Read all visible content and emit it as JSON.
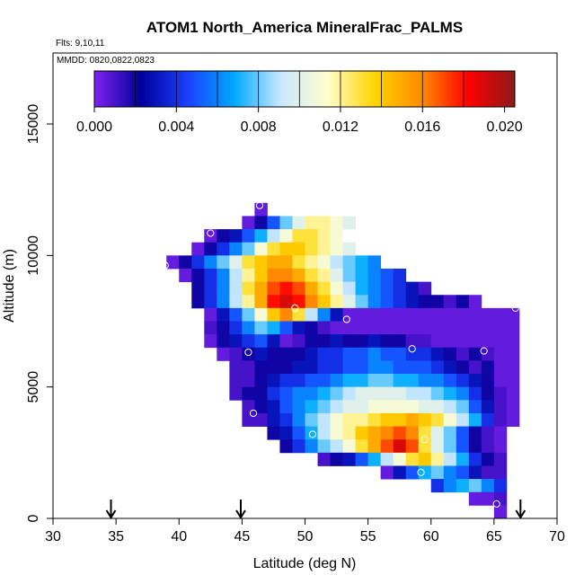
{
  "chart_data": {
    "type": "heatmap",
    "title": "ATOM1 North_America MineralFrac_PALMS",
    "info_lines": [
      "Flts: 9,10,11",
      "MMDD: 0820,0822,0823"
    ],
    "xlabel": "Latitude (deg N)",
    "ylabel": "Altitude (m)",
    "xlim": [
      30,
      70
    ],
    "ylim": [
      0,
      17700
    ],
    "x_ticks": [
      30,
      35,
      40,
      45,
      50,
      55,
      60,
      65,
      70
    ],
    "y_ticks": [
      0,
      5000,
      10000,
      15000
    ],
    "colorbar": {
      "range": [
        0,
        0.0205
      ],
      "tick_values": [
        0,
        0.004,
        0.008,
        0.012,
        0.016,
        0.02
      ],
      "tick_labels": [
        "0.000",
        "0.004",
        "0.008",
        "0.012",
        "0.016",
        "0.020"
      ],
      "stops": [
        "#7f22f0",
        "#00009a",
        "#1a40ff",
        "#00aaff",
        "#cce8ff",
        "#ffffcc",
        "#ffd400",
        "#ff8c00",
        "#ff0000",
        "#8b1a1a"
      ]
    },
    "grid_cell": {
      "lat_step": 1,
      "alt_step": 500
    },
    "rows": [
      {
        "alt": 11750,
        "lat0": 46,
        "values": [
          0.0005
        ]
      },
      {
        "alt": 11250,
        "lat0": 45,
        "values": [
          0.0005,
          0.002,
          0.005,
          0.008,
          0.01,
          0.012,
          0.012,
          0.011,
          0.01
        ]
      },
      {
        "alt": 10750,
        "lat0": 42,
        "values": [
          0.0005,
          0.002,
          0.003,
          0.005,
          0.007,
          0.009,
          0.011,
          0.013,
          0.013,
          0.012,
          0.011
        ]
      },
      {
        "alt": 10250,
        "lat0": 41,
        "values": [
          0.0005,
          0.002,
          0.004,
          0.006,
          0.008,
          0.011,
          0.013,
          0.014,
          0.014,
          0.013,
          0.012,
          0.011,
          0.01
        ]
      },
      {
        "alt": 9750,
        "lat0": 39,
        "values": [
          0.0005,
          0.002,
          0.004,
          0.006,
          0.008,
          0.01,
          0.013,
          0.014,
          0.015,
          0.015,
          0.013,
          0.012,
          0.011,
          0.009,
          0.008,
          0.007,
          0.006
        ]
      },
      {
        "alt": 9250,
        "lat0": 40,
        "values": [
          0.0005,
          0.002,
          0.004,
          0.006,
          0.009,
          0.012,
          0.014,
          0.016,
          0.016,
          0.015,
          0.013,
          0.012,
          0.01,
          0.008,
          0.007,
          0.006,
          0.005,
          0.004
        ]
      },
      {
        "alt": 8750,
        "lat0": 41,
        "values": [
          0.002,
          0.004,
          0.006,
          0.009,
          0.013,
          0.015,
          0.017,
          0.018,
          0.017,
          0.015,
          0.013,
          0.011,
          0.009,
          0.007,
          0.006,
          0.005,
          0.004,
          0.003,
          0.001
        ]
      },
      {
        "alt": 8250,
        "lat0": 41,
        "values": [
          0.002,
          0.004,
          0.006,
          0.009,
          0.012,
          0.015,
          0.018,
          0.019,
          0.018,
          0.016,
          0.014,
          0.012,
          0.01,
          0.008,
          0.006,
          0.005,
          0.004,
          0.003,
          0.002,
          0.002,
          0.001,
          0.002,
          0.0005
        ]
      },
      {
        "alt": 7750,
        "lat0": 42,
        "values": [
          0.0005,
          0.003,
          0.005,
          0.008,
          0.011,
          0.014,
          0.016,
          0.013,
          0.009,
          0.006,
          0.003,
          0.0005,
          0.0005,
          0.0005,
          0.0005,
          0.0005,
          0.0005,
          0.0005,
          0.0005,
          0.0005,
          0.0005,
          0.0005,
          0.0005,
          0.0005,
          0.0005
        ]
      },
      {
        "alt": 7250,
        "lat0": 42,
        "values": [
          0.001,
          0.002,
          0.004,
          0.006,
          0.008,
          0.007,
          0.005,
          0.003,
          0.002,
          0.001,
          0.0005,
          0.0005,
          0.0005,
          0.0005,
          0.0005,
          0.0005,
          0.0005,
          0.0005,
          0.0005,
          0.0005,
          0.0005,
          0.0005,
          0.0005,
          0.0005,
          0.0005
        ]
      },
      {
        "alt": 6750,
        "lat0": 42,
        "values": [
          0.0005,
          0.002,
          0.003,
          0.004,
          0.005,
          0.003,
          0.0005,
          0.001,
          0.002,
          0.002,
          0.003,
          0.002,
          0.002,
          0.003,
          0.002,
          0.002,
          0.001,
          0.001,
          0.0005,
          0.0005,
          0.0005,
          0.0005,
          0.0005,
          0.0005,
          0.0005
        ]
      },
      {
        "alt": 6250,
        "lat0": 43,
        "values": [
          0.0005,
          0.001,
          0.002,
          0.003,
          0.002,
          0.002,
          0.002,
          0.003,
          0.004,
          0.004,
          0.005,
          0.005,
          0.006,
          0.005,
          0.005,
          0.004,
          0.004,
          0.003,
          0.002,
          0.001,
          0.002,
          0.001,
          0.0005,
          0.0005
        ]
      },
      {
        "alt": 5750,
        "lat0": 44,
        "values": [
          0.001,
          0.001,
          0.002,
          0.002,
          0.002,
          0.003,
          0.003,
          0.004,
          0.004,
          0.005,
          0.005,
          0.006,
          0.006,
          0.005,
          0.005,
          0.005,
          0.004,
          0.003,
          0.002,
          0.001,
          0.002,
          0.0005,
          0.0005
        ]
      },
      {
        "alt": 5250,
        "lat0": 44,
        "values": [
          0.001,
          0.001,
          0.002,
          0.003,
          0.004,
          0.004,
          0.005,
          0.005,
          0.006,
          0.007,
          0.007,
          0.008,
          0.008,
          0.007,
          0.007,
          0.006,
          0.006,
          0.005,
          0.004,
          0.003,
          0.002,
          0.0005,
          0.0005
        ]
      },
      {
        "alt": 4750,
        "lat0": 44,
        "values": [
          0.001,
          0.002,
          0.002,
          0.004,
          0.005,
          0.006,
          0.006,
          0.007,
          0.008,
          0.009,
          0.01,
          0.01,
          0.01,
          0.01,
          0.009,
          0.009,
          0.008,
          0.007,
          0.006,
          0.004,
          0.002,
          0.001,
          0.0005
        ]
      },
      {
        "alt": 4250,
        "lat0": 45,
        "values": [
          0.001,
          0.002,
          0.003,
          0.005,
          0.006,
          0.007,
          0.008,
          0.009,
          0.01,
          0.01,
          0.011,
          0.011,
          0.011,
          0.011,
          0.01,
          0.01,
          0.009,
          0.008,
          0.005,
          0.003,
          0.001,
          0.0005
        ]
      },
      {
        "alt": 3750,
        "lat0": 45,
        "values": [
          0.001,
          0.001,
          0.003,
          0.004,
          0.006,
          0.008,
          0.009,
          0.011,
          0.012,
          0.012,
          0.013,
          0.014,
          0.014,
          0.015,
          0.014,
          0.013,
          0.011,
          0.009,
          0.007,
          0.004,
          0.001,
          0.0005
        ]
      },
      {
        "alt": 3250,
        "lat0": 47,
        "values": [
          0.002,
          0.003,
          0.005,
          0.007,
          0.009,
          0.011,
          0.012,
          0.014,
          0.015,
          0.016,
          0.017,
          0.016,
          0.013,
          0.01,
          0.008,
          0.005,
          0.002,
          0.001,
          0.0005
        ]
      },
      {
        "alt": 2750,
        "lat0": 48,
        "values": [
          0.002,
          0.004,
          0.006,
          0.008,
          0.009,
          0.011,
          0.013,
          0.015,
          0.017,
          0.019,
          0.017,
          0.013,
          0.01,
          0.008,
          0.005,
          0.002,
          0.001,
          0.0005
        ]
      },
      {
        "alt": 2250,
        "lat0": 51,
        "values": [
          0.001,
          0.002,
          0.003,
          0.005,
          0.007,
          0.009,
          0.011,
          0.013,
          0.014,
          0.012,
          0.009,
          0.007,
          0.004,
          0.002,
          0.001
        ]
      },
      {
        "alt": 1750,
        "lat0": 56,
        "values": [
          0.0005,
          0.003,
          0.005,
          0.007,
          0.008,
          0.006,
          0.005,
          0.003,
          0.001,
          0.001
        ]
      },
      {
        "alt": 1250,
        "lat0": 60,
        "values": [
          0.004,
          0.006,
          0.007,
          0.008,
          0.006,
          0.004
        ]
      },
      {
        "alt": 750,
        "lat0": 63,
        "values": [
          0.0005,
          0.0005,
          0.001
        ]
      },
      {
        "alt": 250,
        "lat0": 65,
        "values": [
          0.0005
        ]
      }
    ],
    "markers": [
      {
        "lat": 46.4,
        "alt": 11900
      },
      {
        "lat": 42.5,
        "alt": 10850
      },
      {
        "lat": 38.9,
        "alt": 9620
      },
      {
        "lat": 49.2,
        "alt": 8000
      },
      {
        "lat": 53.3,
        "alt": 7570
      },
      {
        "lat": 66.7,
        "alt": 8000
      },
      {
        "lat": 45.5,
        "alt": 6320
      },
      {
        "lat": 58.5,
        "alt": 6450
      },
      {
        "lat": 64.2,
        "alt": 6370
      },
      {
        "lat": 45.9,
        "alt": 4000
      },
      {
        "lat": 50.6,
        "alt": 3200
      },
      {
        "lat": 59.5,
        "alt": 3000
      },
      {
        "lat": 59.2,
        "alt": 1750
      },
      {
        "lat": 65.2,
        "alt": 550
      }
    ],
    "arrow_latitudes": [
      34.6,
      44.9,
      67.1
    ]
  }
}
